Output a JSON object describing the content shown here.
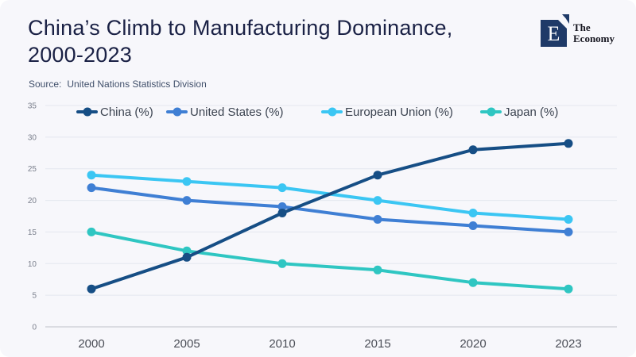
{
  "header": {
    "title_line1": "China’s Climb to Manufacturing Dominance,",
    "title_line2": "2000-2023",
    "source_label": "Source:",
    "source_text": "United Nations Statistics Division",
    "logo": {
      "letter": "E",
      "brand_line1": "The",
      "brand_line2": "Economy"
    }
  },
  "colors": {
    "background": "#f7f7fb",
    "title": "#1a2145",
    "source": "#41506b",
    "grid": "#e4e7ef",
    "axis": "#d2d4da",
    "ytick_label": "#7a7f8c",
    "xtick_label": "#4b4e57",
    "legend_label": "#3b4350",
    "logo_navy": "#1f3a68"
  },
  "chart_data": {
    "type": "line",
    "title": "China’s Climb to Manufacturing Dominance, 2000-2023",
    "source": "United Nations Statistics Division",
    "categories": [
      "2000",
      "2005",
      "2010",
      "2015",
      "2020",
      "2023"
    ],
    "series": [
      {
        "name": "China (%)",
        "color": "#164e85",
        "values": [
          6,
          11,
          18,
          24,
          28,
          29
        ]
      },
      {
        "name": "United States (%)",
        "color": "#3f7fd4",
        "values": [
          22,
          20,
          19,
          17,
          16,
          15
        ]
      },
      {
        "name": "European Union (%)",
        "color": "#3bc6f3",
        "values": [
          24,
          23,
          22,
          20,
          18,
          17
        ]
      },
      {
        "name": "Japan (%)",
        "color": "#2fc6c2",
        "values": [
          15,
          12,
          10,
          9,
          7,
          6
        ]
      }
    ],
    "xlabel": "",
    "ylabel": "",
    "ylim": [
      0,
      35
    ],
    "yticks": [
      0,
      5,
      10,
      15,
      20,
      25,
      30,
      35
    ],
    "grid": true,
    "legend_position": "top"
  }
}
